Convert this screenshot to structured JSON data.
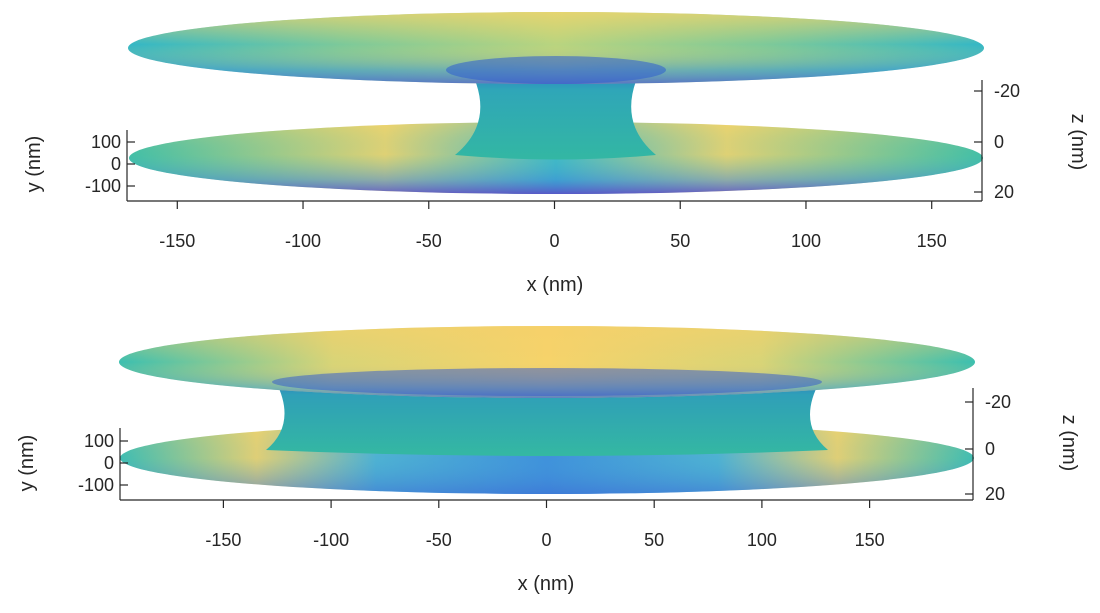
{
  "colors": {
    "surface_yellow": "#f4d56a",
    "surface_green": "#9ed08e",
    "surface_teal": "#3fbfae",
    "surface_cyan": "#36b6c7",
    "surface_blue": "#3d8bd9",
    "surface_deep_blue": "#2f5fd2",
    "surface_violet": "#5a4ec8",
    "neck_teal": "#2fb3a0",
    "axis": "#262626"
  },
  "chart_data": [
    {
      "type": "surface",
      "title": "",
      "xlabel": "x (nm)",
      "ylabel": "y (nm)",
      "zlabel": "z (nm)",
      "x_ticks": [
        "-150",
        "-100",
        "-50",
        "0",
        "50",
        "100",
        "150"
      ],
      "y_ticks": [
        "100",
        "0",
        "-100"
      ],
      "z_ticks": [
        "-20",
        "0",
        "20"
      ],
      "xlim": [
        -170,
        170
      ],
      "zlim": [
        -25,
        25
      ],
      "membrane_radius_nm": 170,
      "neck_radius_nm": 30
    },
    {
      "type": "surface",
      "title": "",
      "xlabel": "x (nm)",
      "ylabel": "y (nm)",
      "zlabel": "z (nm)",
      "x_ticks": [
        "-150",
        "-100",
        "-50",
        "0",
        "50",
        "100",
        "150"
      ],
      "y_ticks": [
        "100",
        "0",
        "-100"
      ],
      "z_ticks": [
        "-20",
        "0",
        "20"
      ],
      "xlim": [
        -198,
        198
      ],
      "zlim": [
        -25,
        25
      ],
      "membrane_radius_nm": 198,
      "neck_radius_nm": 120
    }
  ]
}
